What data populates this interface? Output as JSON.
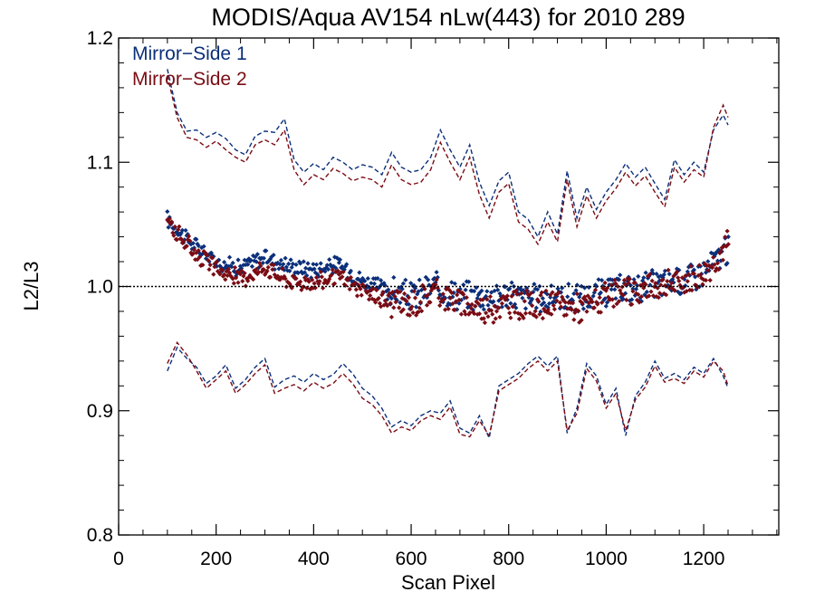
{
  "chart_data": {
    "type": "scatter",
    "title": "MODIS/Aqua AV154 nLw(443) for 2010 289",
    "xlabel": "Scan Pixel",
    "ylabel": "L2/L3",
    "xlim": [
      0,
      1354
    ],
    "ylim": [
      0.8,
      1.2
    ],
    "x_ticks": [
      0,
      200,
      400,
      600,
      800,
      1000,
      1200
    ],
    "x_tick_labels": [
      "0",
      "200",
      "400",
      "600",
      "800",
      "1000",
      "1200"
    ],
    "y_ticks": [
      0.8,
      0.9,
      1.0,
      1.1,
      1.2
    ],
    "y_tick_labels": [
      "0.8",
      "0.9",
      "1.0",
      "1.1",
      "1.2"
    ],
    "reference_line": 1.0,
    "legend_position": "top-left",
    "series": [
      {
        "name": "Mirror−Side 1",
        "color": "#0b2f7a",
        "mean_trend": [
          [
            100,
            1.054
          ],
          [
            150,
            1.035
          ],
          [
            200,
            1.02
          ],
          [
            250,
            1.015
          ],
          [
            300,
            1.024
          ],
          [
            350,
            1.016
          ],
          [
            400,
            1.014
          ],
          [
            450,
            1.018
          ],
          [
            500,
            1.005
          ],
          [
            550,
            0.997
          ],
          [
            600,
            0.992
          ],
          [
            650,
            1.0
          ],
          [
            700,
            0.993
          ],
          [
            750,
            0.992
          ],
          [
            800,
            0.994
          ],
          [
            850,
            0.99
          ],
          [
            900,
            0.992
          ],
          [
            950,
            0.99
          ],
          [
            1000,
            0.996
          ],
          [
            1050,
            0.998
          ],
          [
            1100,
            1.002
          ],
          [
            1150,
            1.005
          ],
          [
            1200,
            1.012
          ],
          [
            1250,
            1.03
          ]
        ],
        "upper_bound": [
          [
            100,
            1.175
          ],
          [
            120,
            1.14
          ],
          [
            140,
            1.125
          ],
          [
            160,
            1.126
          ],
          [
            180,
            1.12
          ],
          [
            200,
            1.124
          ],
          [
            220,
            1.119
          ],
          [
            240,
            1.11
          ],
          [
            260,
            1.106
          ],
          [
            280,
            1.121
          ],
          [
            300,
            1.125
          ],
          [
            320,
            1.124
          ],
          [
            340,
            1.135
          ],
          [
            360,
            1.102
          ],
          [
            380,
            1.092
          ],
          [
            400,
            1.099
          ],
          [
            420,
            1.094
          ],
          [
            440,
            1.104
          ],
          [
            460,
            1.1
          ],
          [
            480,
            1.094
          ],
          [
            500,
            1.098
          ],
          [
            520,
            1.096
          ],
          [
            540,
            1.09
          ],
          [
            560,
            1.108
          ],
          [
            580,
            1.096
          ],
          [
            600,
            1.092
          ],
          [
            620,
            1.094
          ],
          [
            640,
            1.104
          ],
          [
            660,
            1.126
          ],
          [
            680,
            1.11
          ],
          [
            700,
            1.096
          ],
          [
            720,
            1.114
          ],
          [
            740,
            1.084
          ],
          [
            760,
            1.065
          ],
          [
            780,
            1.085
          ],
          [
            800,
            1.092
          ],
          [
            820,
            1.06
          ],
          [
            840,
            1.054
          ],
          [
            860,
            1.04
          ],
          [
            880,
            1.06
          ],
          [
            900,
            1.042
          ],
          [
            920,
            1.093
          ],
          [
            940,
            1.055
          ],
          [
            960,
            1.08
          ],
          [
            980,
            1.062
          ],
          [
            1000,
            1.076
          ],
          [
            1020,
            1.086
          ],
          [
            1040,
            1.099
          ],
          [
            1060,
            1.088
          ],
          [
            1080,
            1.096
          ],
          [
            1100,
            1.083
          ],
          [
            1120,
            1.07
          ],
          [
            1140,
            1.102
          ],
          [
            1160,
            1.09
          ],
          [
            1180,
            1.1
          ],
          [
            1200,
            1.092
          ],
          [
            1220,
            1.126
          ],
          [
            1240,
            1.138
          ],
          [
            1250,
            1.13
          ]
        ],
        "lower_bound": [
          [
            100,
            0.932
          ],
          [
            120,
            0.951
          ],
          [
            140,
            0.942
          ],
          [
            160,
            0.935
          ],
          [
            180,
            0.922
          ],
          [
            200,
            0.928
          ],
          [
            220,
            0.937
          ],
          [
            240,
            0.918
          ],
          [
            260,
            0.925
          ],
          [
            280,
            0.935
          ],
          [
            300,
            0.942
          ],
          [
            320,
            0.919
          ],
          [
            340,
            0.925
          ],
          [
            360,
            0.928
          ],
          [
            380,
            0.923
          ],
          [
            400,
            0.93
          ],
          [
            420,
            0.925
          ],
          [
            440,
            0.929
          ],
          [
            460,
            0.938
          ],
          [
            480,
            0.93
          ],
          [
            500,
            0.918
          ],
          [
            520,
            0.912
          ],
          [
            540,
            0.902
          ],
          [
            560,
            0.887
          ],
          [
            580,
            0.892
          ],
          [
            600,
            0.888
          ],
          [
            620,
            0.896
          ],
          [
            640,
            0.9
          ],
          [
            660,
            0.898
          ],
          [
            680,
            0.908
          ],
          [
            700,
            0.886
          ],
          [
            720,
            0.882
          ],
          [
            740,
            0.896
          ],
          [
            760,
            0.878
          ],
          [
            780,
            0.92
          ],
          [
            800,
            0.925
          ],
          [
            820,
            0.93
          ],
          [
            840,
            0.938
          ],
          [
            860,
            0.944
          ],
          [
            880,
            0.936
          ],
          [
            900,
            0.944
          ],
          [
            920,
            0.882
          ],
          [
            940,
            0.902
          ],
          [
            960,
            0.938
          ],
          [
            980,
            0.928
          ],
          [
            1000,
            0.905
          ],
          [
            1020,
            0.918
          ],
          [
            1040,
            0.88
          ],
          [
            1060,
            0.912
          ],
          [
            1080,
            0.923
          ],
          [
            1100,
            0.94
          ],
          [
            1120,
            0.926
          ],
          [
            1140,
            0.93
          ],
          [
            1160,
            0.925
          ],
          [
            1180,
            0.935
          ],
          [
            1200,
            0.93
          ],
          [
            1220,
            0.942
          ],
          [
            1240,
            0.928
          ],
          [
            1250,
            0.918
          ]
        ]
      },
      {
        "name": "Mirror−Side 2",
        "color": "#7a0c14",
        "mean_trend": [
          [
            100,
            1.052
          ],
          [
            150,
            1.03
          ],
          [
            200,
            1.014
          ],
          [
            250,
            1.006
          ],
          [
            300,
            1.016
          ],
          [
            350,
            1.004
          ],
          [
            400,
            1.003
          ],
          [
            450,
            1.008
          ],
          [
            500,
            0.996
          ],
          [
            550,
            0.988
          ],
          [
            600,
            0.985
          ],
          [
            650,
            0.997
          ],
          [
            700,
            0.986
          ],
          [
            750,
            0.982
          ],
          [
            800,
            0.986
          ],
          [
            850,
            0.985
          ],
          [
            900,
            0.985
          ],
          [
            950,
            0.983
          ],
          [
            1000,
            0.991
          ],
          [
            1050,
            0.995
          ],
          [
            1100,
            1.0
          ],
          [
            1150,
            1.003
          ],
          [
            1200,
            1.01
          ],
          [
            1250,
            1.035
          ]
        ],
        "upper_bound": [
          [
            100,
            1.17
          ],
          [
            120,
            1.136
          ],
          [
            140,
            1.12
          ],
          [
            160,
            1.118
          ],
          [
            180,
            1.112
          ],
          [
            200,
            1.117
          ],
          [
            220,
            1.11
          ],
          [
            240,
            1.104
          ],
          [
            260,
            1.1
          ],
          [
            280,
            1.114
          ],
          [
            300,
            1.118
          ],
          [
            320,
            1.114
          ],
          [
            340,
            1.126
          ],
          [
            360,
            1.094
          ],
          [
            380,
            1.082
          ],
          [
            400,
            1.09
          ],
          [
            420,
            1.086
          ],
          [
            440,
            1.095
          ],
          [
            460,
            1.091
          ],
          [
            480,
            1.085
          ],
          [
            500,
            1.088
          ],
          [
            520,
            1.086
          ],
          [
            540,
            1.08
          ],
          [
            560,
            1.098
          ],
          [
            580,
            1.086
          ],
          [
            600,
            1.082
          ],
          [
            620,
            1.084
          ],
          [
            640,
            1.094
          ],
          [
            660,
            1.116
          ],
          [
            680,
            1.1
          ],
          [
            700,
            1.086
          ],
          [
            720,
            1.104
          ],
          [
            740,
            1.074
          ],
          [
            760,
            1.055
          ],
          [
            780,
            1.076
          ],
          [
            800,
            1.083
          ],
          [
            820,
            1.052
          ],
          [
            840,
            1.046
          ],
          [
            860,
            1.034
          ],
          [
            880,
            1.052
          ],
          [
            900,
            1.036
          ],
          [
            920,
            1.086
          ],
          [
            940,
            1.048
          ],
          [
            960,
            1.073
          ],
          [
            980,
            1.055
          ],
          [
            1000,
            1.069
          ],
          [
            1020,
            1.079
          ],
          [
            1040,
            1.092
          ],
          [
            1060,
            1.081
          ],
          [
            1080,
            1.089
          ],
          [
            1100,
            1.076
          ],
          [
            1120,
            1.064
          ],
          [
            1140,
            1.096
          ],
          [
            1160,
            1.084
          ],
          [
            1180,
            1.094
          ],
          [
            1200,
            1.088
          ],
          [
            1220,
            1.128
          ],
          [
            1240,
            1.146
          ],
          [
            1250,
            1.136
          ]
        ],
        "lower_bound": [
          [
            100,
            0.938
          ],
          [
            120,
            0.955
          ],
          [
            140,
            0.945
          ],
          [
            160,
            0.932
          ],
          [
            180,
            0.918
          ],
          [
            200,
            0.925
          ],
          [
            220,
            0.932
          ],
          [
            240,
            0.914
          ],
          [
            260,
            0.921
          ],
          [
            280,
            0.93
          ],
          [
            300,
            0.937
          ],
          [
            320,
            0.914
          ],
          [
            340,
            0.918
          ],
          [
            360,
            0.921
          ],
          [
            380,
            0.916
          ],
          [
            400,
            0.923
          ],
          [
            420,
            0.918
          ],
          [
            440,
            0.922
          ],
          [
            460,
            0.93
          ],
          [
            480,
            0.922
          ],
          [
            500,
            0.91
          ],
          [
            520,
            0.905
          ],
          [
            540,
            0.896
          ],
          [
            560,
            0.882
          ],
          [
            580,
            0.887
          ],
          [
            600,
            0.884
          ],
          [
            620,
            0.892
          ],
          [
            640,
            0.896
          ],
          [
            660,
            0.893
          ],
          [
            680,
            0.903
          ],
          [
            700,
            0.881
          ],
          [
            720,
            0.879
          ],
          [
            740,
            0.892
          ],
          [
            760,
            0.88
          ],
          [
            780,
            0.916
          ],
          [
            800,
            0.921
          ],
          [
            820,
            0.926
          ],
          [
            840,
            0.934
          ],
          [
            860,
            0.94
          ],
          [
            880,
            0.932
          ],
          [
            900,
            0.94
          ],
          [
            920,
            0.884
          ],
          [
            940,
            0.898
          ],
          [
            960,
            0.934
          ],
          [
            980,
            0.924
          ],
          [
            1000,
            0.902
          ],
          [
            1020,
            0.914
          ],
          [
            1040,
            0.884
          ],
          [
            1060,
            0.909
          ],
          [
            1080,
            0.919
          ],
          [
            1100,
            0.936
          ],
          [
            1120,
            0.923
          ],
          [
            1140,
            0.926
          ],
          [
            1160,
            0.922
          ],
          [
            1180,
            0.932
          ],
          [
            1200,
            0.927
          ],
          [
            1220,
            0.94
          ],
          [
            1240,
            0.932
          ],
          [
            1250,
            0.92
          ]
        ]
      }
    ]
  }
}
